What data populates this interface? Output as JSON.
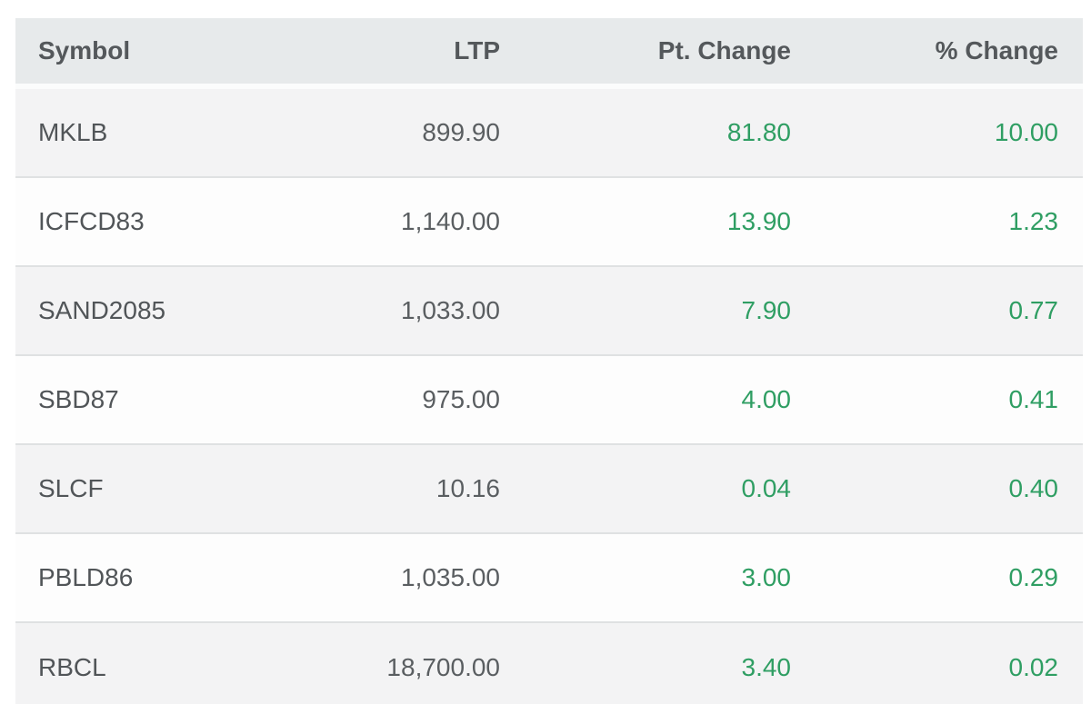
{
  "table": {
    "columns": [
      {
        "key": "symbol",
        "label": "Symbol",
        "align": "left"
      },
      {
        "key": "ltp",
        "label": "LTP",
        "align": "right"
      },
      {
        "key": "pt_change",
        "label": "Pt. Change",
        "align": "right"
      },
      {
        "key": "pct_change",
        "label": "% Change",
        "align": "right"
      }
    ],
    "rows": [
      {
        "symbol": "MKLB",
        "ltp": "899.90",
        "pt_change": "81.80",
        "pct_change": "10.00"
      },
      {
        "symbol": "ICFCD83",
        "ltp": "1,140.00",
        "pt_change": "13.90",
        "pct_change": "1.23"
      },
      {
        "symbol": "SAND2085",
        "ltp": "1,033.00",
        "pt_change": "7.90",
        "pct_change": "0.77"
      },
      {
        "symbol": "SBD87",
        "ltp": "975.00",
        "pt_change": "4.00",
        "pct_change": "0.41"
      },
      {
        "symbol": "SLCF",
        "ltp": "10.16",
        "pt_change": "0.04",
        "pct_change": "0.40"
      },
      {
        "symbol": "PBLD86",
        "ltp": "1,035.00",
        "pt_change": "3.00",
        "pct_change": "0.29"
      },
      {
        "symbol": "RBCL",
        "ltp": "18,700.00",
        "pt_change": "3.40",
        "pct_change": "0.02"
      }
    ],
    "colors": {
      "positive_change": "#2f9e63",
      "header_bg": "#e7eaeb",
      "row_alt_bg": "#f3f3f4",
      "row_bg": "#fdfdfd",
      "header_text": "#54585b",
      "cell_text": "#55595c",
      "row_border": "#dfe1e2"
    }
  }
}
